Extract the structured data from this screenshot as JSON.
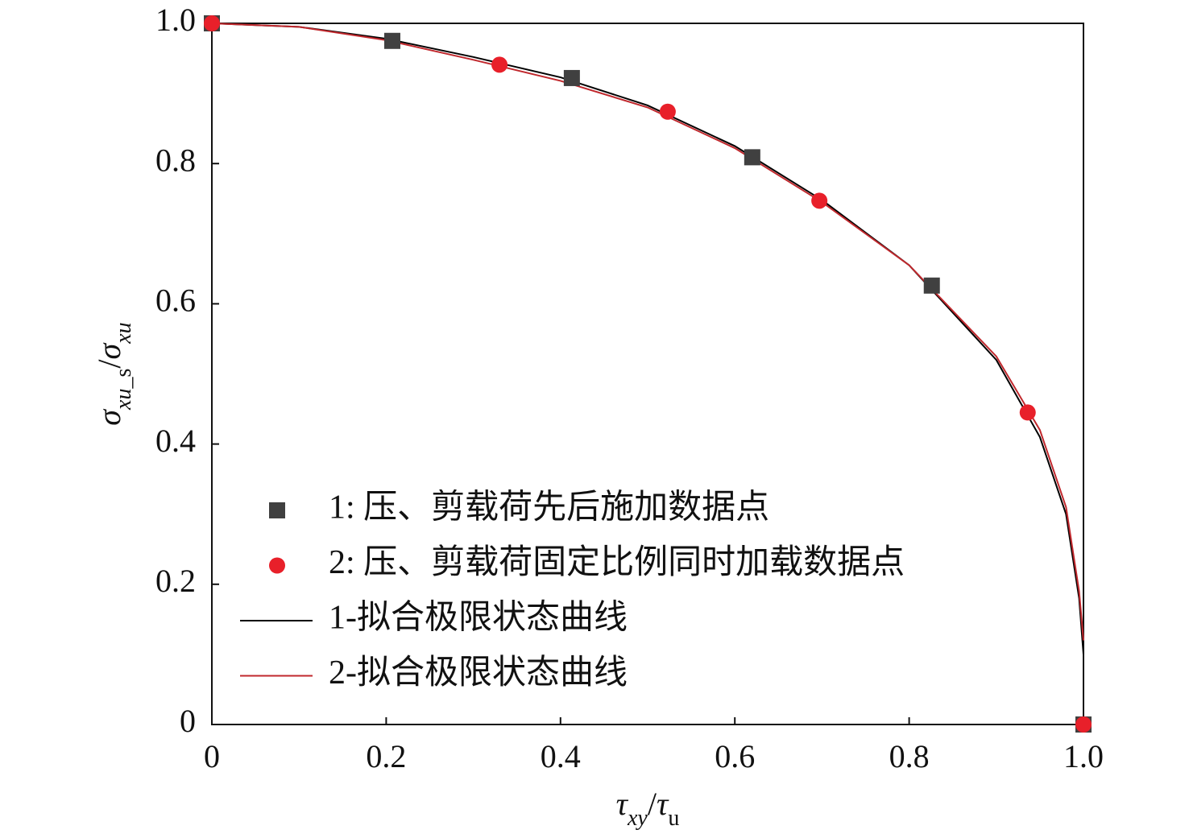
{
  "chart_data": {
    "type": "scatter",
    "xlabel": [
      {
        "text": "τ",
        "italic": true
      },
      {
        "text": "xy",
        "italic": true,
        "sub": true
      },
      {
        "text": "/"
      },
      {
        "text": "τ",
        "italic": true
      },
      {
        "text": "u",
        "sub": true
      }
    ],
    "ylabel": [
      {
        "text": "σ",
        "italic": true
      },
      {
        "text": "xu",
        "italic": true,
        "sub": true
      },
      {
        "text": "_s",
        "sub": true
      },
      {
        "text": "/"
      },
      {
        "text": "σ",
        "italic": true
      },
      {
        "text": "xu",
        "italic": true,
        "sub": true
      }
    ],
    "xlim": [
      0,
      1
    ],
    "ylim": [
      0,
      1
    ],
    "xticks": [
      0,
      0.2,
      0.4,
      0.6,
      0.8,
      {
        "value": 1,
        "label": "1.0"
      }
    ],
    "yticks": [
      0,
      0.2,
      0.4,
      0.6,
      0.8,
      {
        "value": 1,
        "label": "1.0"
      }
    ],
    "series": [
      {
        "name": "1: 压、剪载荷先后施加数据点",
        "color": "#404040",
        "marker": "square",
        "x": [
          0,
          0.207,
          0.413,
          0.62,
          0.826,
          1.0
        ],
        "values": [
          1.0,
          0.975,
          0.922,
          0.809,
          0.626,
          0
        ]
      },
      {
        "name": "2: 压、剪载荷固定比例同时加载数据点",
        "color": "#e8202a",
        "marker": "circle",
        "x": [
          0,
          0.33,
          0.523,
          0.697,
          0.936,
          1.0
        ],
        "values": [
          1.0,
          0.941,
          0.874,
          0.747,
          0.445,
          0
        ]
      },
      {
        "name": "1-拟合极限状态曲线",
        "color": "#000000",
        "marker": "line",
        "x": [
          0,
          0.1,
          0.2,
          0.3,
          0.4,
          0.5,
          0.6,
          0.7,
          0.8,
          0.9,
          0.95,
          0.98,
          0.995,
          1.0
        ],
        "values": [
          1.0,
          0.995,
          0.978,
          0.952,
          0.923,
          0.883,
          0.825,
          0.748,
          0.655,
          0.52,
          0.41,
          0.3,
          0.18,
          0.1
        ]
      },
      {
        "name": "2-拟合极限状态曲线",
        "color": "#c0282d",
        "marker": "line",
        "x": [
          0,
          0.1,
          0.2,
          0.3,
          0.4,
          0.5,
          0.6,
          0.7,
          0.8,
          0.9,
          0.95,
          0.98,
          0.995,
          1.0
        ],
        "values": [
          1.0,
          0.995,
          0.976,
          0.948,
          0.918,
          0.88,
          0.822,
          0.745,
          0.655,
          0.525,
          0.42,
          0.31,
          0.19,
          0.12
        ]
      }
    ],
    "legend": "lower-left"
  }
}
